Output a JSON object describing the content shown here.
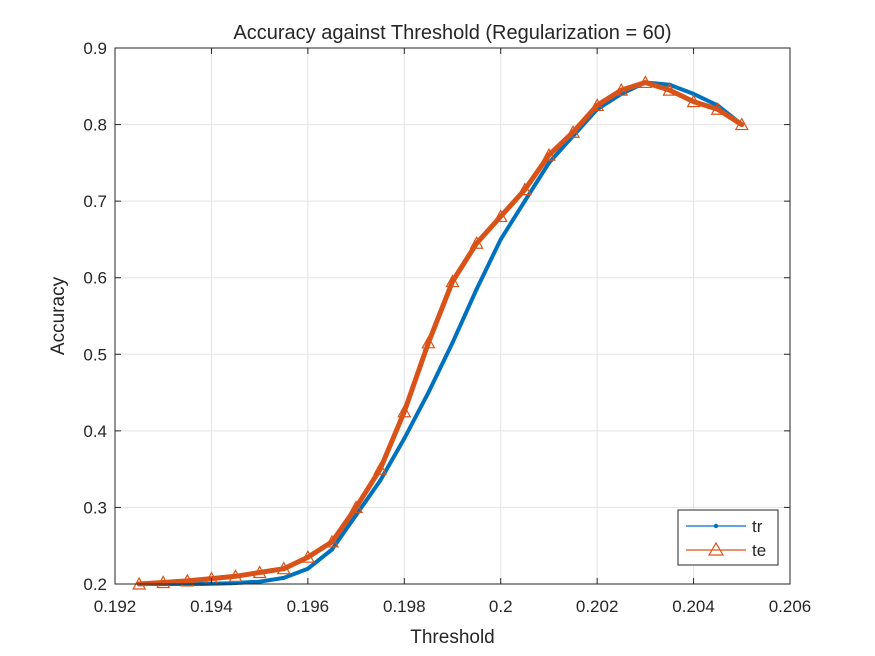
{
  "chart_data": {
    "type": "line",
    "title": "Accuracy against Threshold (Regularization = 60)",
    "xlabel": "Threshold",
    "ylabel": "Accuracy",
    "xlim": [
      0.192,
      0.206
    ],
    "ylim": [
      0.2,
      0.9
    ],
    "xticks": [
      0.192,
      0.194,
      0.196,
      0.198,
      0.2,
      0.202,
      0.204,
      0.206
    ],
    "xtick_labels": [
      "0.192",
      "0.194",
      "0.196",
      "0.198",
      "0.2",
      "0.202",
      "0.204",
      "0.206"
    ],
    "yticks": [
      0.2,
      0.3,
      0.4,
      0.5,
      0.6,
      0.7,
      0.8,
      0.9
    ],
    "ytick_labels": [
      "0.2",
      "0.3",
      "0.4",
      "0.5",
      "0.6",
      "0.7",
      "0.8",
      "0.9"
    ],
    "grid": true,
    "legend_position": "bottom-right",
    "series": [
      {
        "name": "tr",
        "color": "#0072BD",
        "marker": "point",
        "x": [
          0.1926,
          0.1932,
          0.1938,
          0.1944,
          0.195,
          0.1955,
          0.196,
          0.1965,
          0.197,
          0.1975,
          0.198,
          0.1985,
          0.199,
          0.1995,
          0.2,
          0.2005,
          0.201,
          0.2015,
          0.202,
          0.2025,
          0.203,
          0.2035,
          0.204,
          0.2045,
          0.205
        ],
        "y": [
          0.2,
          0.2,
          0.2,
          0.201,
          0.203,
          0.208,
          0.22,
          0.245,
          0.29,
          0.335,
          0.39,
          0.45,
          0.515,
          0.585,
          0.65,
          0.7,
          0.75,
          0.785,
          0.82,
          0.84,
          0.855,
          0.852,
          0.84,
          0.825,
          0.8
        ]
      },
      {
        "name": "te",
        "color": "#D95319",
        "marker": "triangle",
        "x": [
          0.1925,
          0.193,
          0.1935,
          0.194,
          0.1945,
          0.195,
          0.1955,
          0.196,
          0.1965,
          0.197,
          0.1975,
          0.198,
          0.1985,
          0.199,
          0.1995,
          0.2,
          0.2005,
          0.201,
          0.2015,
          0.202,
          0.2025,
          0.203,
          0.2035,
          0.204,
          0.2045,
          0.205
        ],
        "y": [
          0.2,
          0.202,
          0.204,
          0.207,
          0.21,
          0.215,
          0.22,
          0.235,
          0.255,
          0.3,
          0.35,
          0.425,
          0.515,
          0.595,
          0.645,
          0.68,
          0.715,
          0.76,
          0.79,
          0.825,
          0.845,
          0.855,
          0.845,
          0.83,
          0.82,
          0.8
        ]
      }
    ]
  }
}
